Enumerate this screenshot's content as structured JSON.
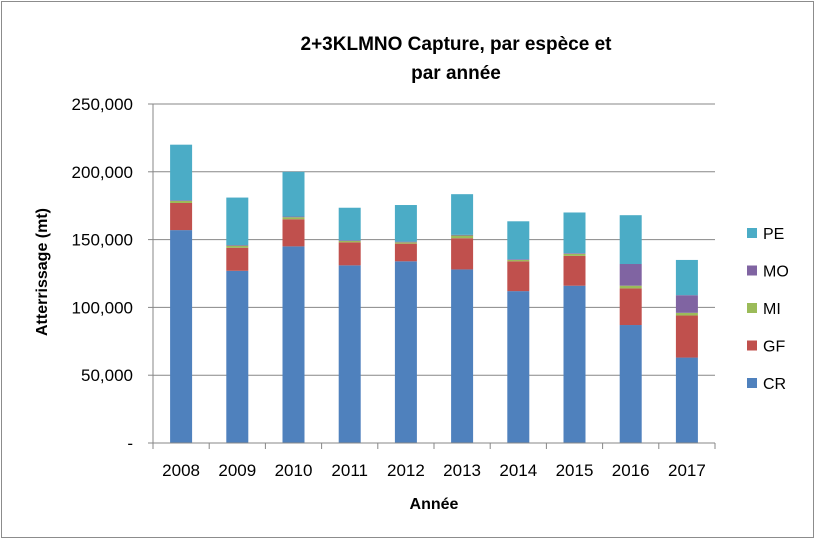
{
  "chart_data": {
    "type": "bar",
    "stacked": true,
    "title_lines": [
      "2+3KLMNO Capture, par espèce et",
      "par année"
    ],
    "xlabel": "Année",
    "ylabel": "Atterrissage (mt)",
    "ylim": [
      0,
      250000
    ],
    "y_ticks": [
      0,
      50000,
      100000,
      150000,
      200000,
      250000
    ],
    "y_tick_labels": [
      "-",
      "50,000",
      "100,000",
      "150,000",
      "200,000",
      "250,000"
    ],
    "grid": true,
    "legend_position": "right",
    "categories": [
      "2008",
      "2009",
      "2010",
      "2011",
      "2012",
      "2013",
      "2014",
      "2015",
      "2016",
      "2017"
    ],
    "series": [
      {
        "name": "CR",
        "color": "#4f81bd",
        "values": [
          157000,
          127000,
          145000,
          131000,
          134000,
          128000,
          112000,
          116000,
          87000,
          63000
        ]
      },
      {
        "name": "GF",
        "color": "#c0504d",
        "values": [
          20000,
          17000,
          20000,
          17000,
          13000,
          23000,
          22000,
          22000,
          27000,
          31000
        ]
      },
      {
        "name": "MI",
        "color": "#9bbb59",
        "values": [
          1500,
          1500,
          1500,
          1000,
          1000,
          2000,
          1000,
          1500,
          2000,
          2000
        ]
      },
      {
        "name": "MO",
        "color": "#8064a2",
        "values": [
          500,
          500,
          500,
          500,
          500,
          500,
          500,
          500,
          16000,
          13000
        ]
      },
      {
        "name": "PE",
        "color": "#4bacc6",
        "values": [
          41000,
          35000,
          33000,
          24000,
          27000,
          30000,
          28000,
          30000,
          36000,
          26000
        ]
      }
    ]
  }
}
